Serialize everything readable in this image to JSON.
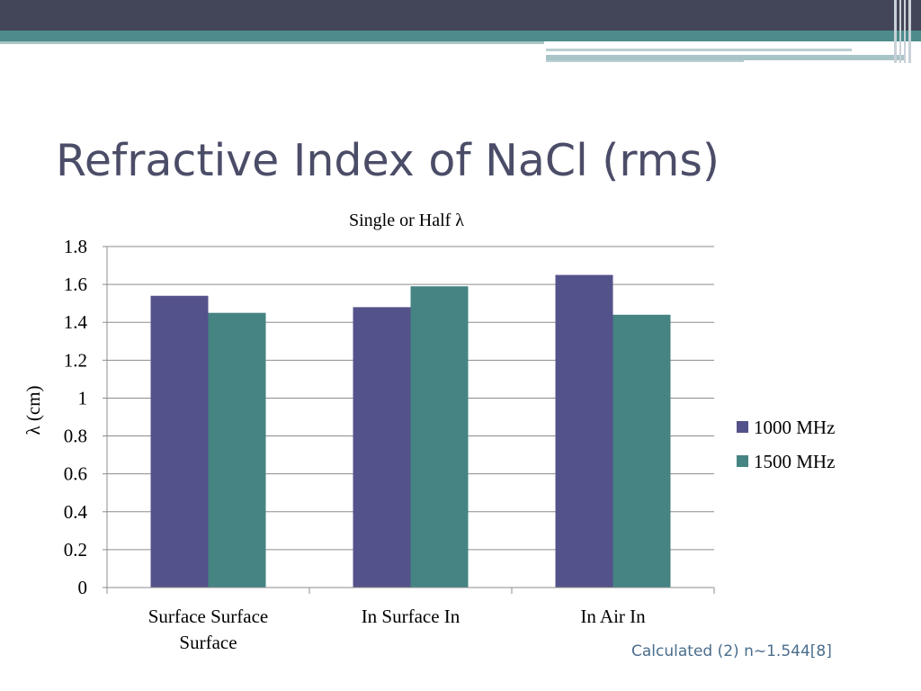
{
  "slide": {
    "title": "Refractive Index of NaCl (rms)",
    "footnote": "Calculated (2) n~1.544[8]"
  },
  "colors": {
    "header_dark": "#434659",
    "header_teal": "#4c8c8c",
    "title_text": "#4b4d68",
    "series_1000": "#54528a",
    "series_1500": "#458483"
  },
  "chart_data": {
    "type": "bar",
    "title": "Single or Half λ",
    "ylabel": "λ (cm)",
    "xlabel": "",
    "categories": [
      [
        "Surface Surface",
        "Surface"
      ],
      [
        "In Surface In"
      ],
      [
        "In Air In"
      ]
    ],
    "series": [
      {
        "name": "1000 MHz",
        "values": [
          1.54,
          1.48,
          1.65
        ],
        "color": "#54528a"
      },
      {
        "name": "1500 MHz",
        "values": [
          1.45,
          1.59,
          1.44
        ],
        "color": "#458483"
      }
    ],
    "ylim": [
      0,
      1.8
    ],
    "yticks": [
      "0",
      "0.2",
      "0.4",
      "0.6",
      "0.8",
      "1",
      "1.2",
      "1.4",
      "1.6",
      "1.8"
    ],
    "grid": true,
    "legend": "right"
  }
}
